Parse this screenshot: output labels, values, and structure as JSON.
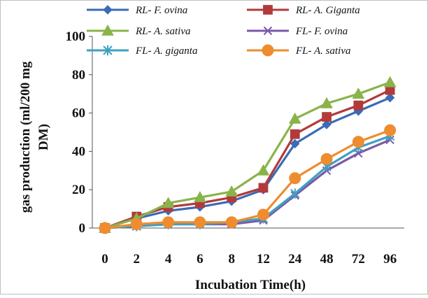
{
  "chart_data": {
    "type": "line",
    "title": "",
    "xlabel": "Incubation Time(h)",
    "ylabel_lines": [
      "gas production (ml/200 mg",
      "DM)"
    ],
    "categories": [
      "0",
      "2",
      "4",
      "6",
      "8",
      "12",
      "24",
      "48",
      "72",
      "96"
    ],
    "ylim": [
      0,
      100
    ],
    "yticks": [
      "0",
      "20",
      "40",
      "60",
      "80",
      "100"
    ],
    "grid": false,
    "legend_position": "top",
    "series": [
      {
        "name": "RL- F. ovina",
        "color": "#3A6BB5",
        "marker": "diamond",
        "values": [
          0,
          5,
          9,
          11,
          14,
          20,
          44,
          54,
          61,
          68
        ]
      },
      {
        "name": "RL- A. Giganta",
        "color": "#B23A3A",
        "marker": "square",
        "values": [
          0,
          6,
          11,
          13,
          16,
          21,
          49,
          58,
          64,
          72
        ]
      },
      {
        "name": "RL- A. sativa",
        "color": "#8AB34A",
        "marker": "triangle",
        "values": [
          0,
          5,
          13,
          16,
          19,
          30,
          57,
          65,
          70,
          76
        ]
      },
      {
        "name": "FL- F. ovina",
        "color": "#7A5AA8",
        "marker": "x",
        "values": [
          0,
          1,
          2,
          2,
          2,
          4,
          17,
          30,
          39,
          46
        ]
      },
      {
        "name": "FL- A. giganta",
        "color": "#3FA0C2",
        "marker": "star",
        "values": [
          0,
          1,
          2,
          2,
          3,
          5,
          18,
          32,
          42,
          48
        ]
      },
      {
        "name": "FL- A. sativa",
        "color": "#EE8C2F",
        "marker": "circle",
        "values": [
          0,
          2,
          3,
          3,
          3,
          7,
          26,
          36,
          45,
          51
        ]
      }
    ]
  }
}
